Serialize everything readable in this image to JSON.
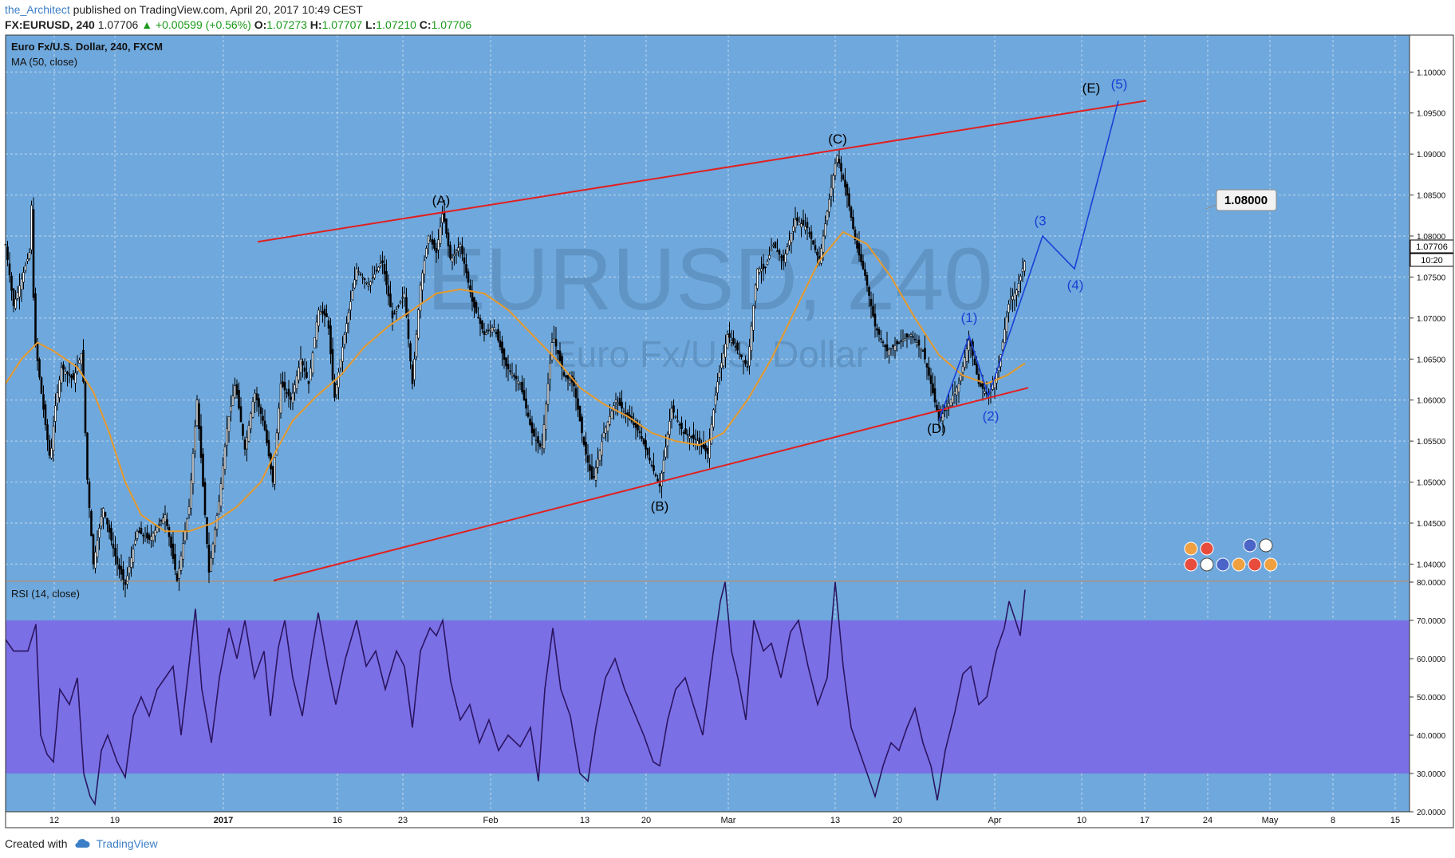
{
  "header": {
    "author": "the_Architect",
    "published": "published on TradingView.com, April 20, 2017 10:49 CEST",
    "symbol": "FX:EURUSD, 240",
    "last": "1.07706",
    "change": "▲ +0.00599 (+0.56%)",
    "o_label": "O:",
    "o": "1.07273",
    "h_label": "H:",
    "h": "1.07707",
    "l_label": "L:",
    "l": "1.07210",
    "c_label": "C:",
    "c": "1.07706"
  },
  "price_pane": {
    "title": "Euro Fx/U.S. Dollar, 240, FXCM",
    "ma_label": "MA (50, close)",
    "watermark_big": "EURUSD, 240",
    "watermark_small": "Euro Fx/U.S. Dollar",
    "last_price_tag": "1.07706",
    "countdown_tag": "10:20",
    "target_box": "1.08000"
  },
  "rsi_pane": {
    "title": "RSI (14, close)"
  },
  "footer": {
    "created_with": "Created with",
    "brand": "TradingView"
  },
  "colors": {
    "background": "#6fa8dc",
    "rsi_band": "#7b6fe6",
    "trendline": "#e02020",
    "ma": "#e69a2e",
    "wave": "#1a3fd6",
    "rsi_line": "#2a1560",
    "candles": "#000000"
  },
  "chart_data": [
    {
      "type": "candlestick",
      "title": "Euro Fx/U.S. Dollar, 240, FXCM",
      "ylim": [
        1.038,
        1.1045
      ],
      "y_ticks": [
        "1.10000",
        "1.09500",
        "1.09000",
        "1.08500",
        "1.08000",
        "1.07500",
        "1.07000",
        "1.06500",
        "1.06000",
        "1.05500",
        "1.05000",
        "1.04500",
        "1.04000"
      ],
      "x_ticks": [
        "12",
        "19",
        "2017",
        "16",
        "23",
        "Feb",
        "13",
        "20",
        "Mar",
        "13",
        "20",
        "Apr",
        "10",
        "17",
        "24",
        "May",
        "8",
        "15"
      ],
      "price_path": [
        [
          0,
          1.079
        ],
        [
          10,
          1.0715
        ],
        [
          30,
          1.078
        ],
        [
          32,
          1.086
        ],
        [
          36,
          1.068
        ],
        [
          46,
          1.06
        ],
        [
          56,
          1.0525
        ],
        [
          62,
          1.059
        ],
        [
          70,
          1.064
        ],
        [
          85,
          1.0625
        ],
        [
          96,
          1.066
        ],
        [
          102,
          1.051
        ],
        [
          110,
          1.04
        ],
        [
          122,
          1.047
        ],
        [
          140,
          1.04
        ],
        [
          150,
          1.0375
        ],
        [
          165,
          1.044
        ],
        [
          180,
          1.043
        ],
        [
          200,
          1.046
        ],
        [
          215,
          1.038
        ],
        [
          230,
          1.047
        ],
        [
          240,
          1.06
        ],
        [
          255,
          1.039
        ],
        [
          268,
          1.048
        ],
        [
          278,
          1.057
        ],
        [
          288,
          1.062
        ],
        [
          300,
          1.054
        ],
        [
          312,
          1.061
        ],
        [
          324,
          1.057
        ],
        [
          335,
          1.05
        ],
        [
          345,
          1.062
        ],
        [
          358,
          1.06
        ],
        [
          370,
          1.065
        ],
        [
          380,
          1.062
        ],
        [
          392,
          1.071
        ],
        [
          404,
          1.07
        ],
        [
          412,
          1.06
        ],
        [
          425,
          1.068
        ],
        [
          440,
          1.076
        ],
        [
          455,
          1.074
        ],
        [
          472,
          1.077
        ],
        [
          485,
          1.07
        ],
        [
          500,
          1.073
        ],
        [
          510,
          1.062
        ],
        [
          520,
          1.074
        ],
        [
          530,
          1.08
        ],
        [
          540,
          1.078
        ],
        [
          548,
          1.083
        ],
        [
          558,
          1.077
        ],
        [
          570,
          1.079
        ],
        [
          585,
          1.072
        ],
        [
          600,
          1.068
        ],
        [
          612,
          1.069
        ],
        [
          628,
          1.064
        ],
        [
          645,
          1.062
        ],
        [
          660,
          1.056
        ],
        [
          672,
          1.054
        ],
        [
          686,
          1.068
        ],
        [
          700,
          1.063
        ],
        [
          712,
          1.062
        ],
        [
          726,
          1.054
        ],
        [
          736,
          1.05
        ],
        [
          750,
          1.056
        ],
        [
          765,
          1.06
        ],
        [
          780,
          1.058
        ],
        [
          795,
          1.056
        ],
        [
          810,
          1.052
        ],
        [
          820,
          1.0495
        ],
        [
          835,
          1.059
        ],
        [
          850,
          1.056
        ],
        [
          868,
          1.055
        ],
        [
          880,
          1.0535
        ],
        [
          892,
          1.062
        ],
        [
          905,
          1.068
        ],
        [
          918,
          1.066
        ],
        [
          930,
          1.064
        ],
        [
          942,
          1.076
        ],
        [
          952,
          1.076
        ],
        [
          962,
          1.079
        ],
        [
          975,
          1.077
        ],
        [
          990,
          1.082
        ],
        [
          1005,
          1.081
        ],
        [
          1020,
          1.077
        ],
        [
          1030,
          1.083
        ],
        [
          1042,
          1.09
        ],
        [
          1055,
          1.085
        ],
        [
          1066,
          1.079
        ],
        [
          1078,
          1.075
        ],
        [
          1090,
          1.069
        ],
        [
          1105,
          1.066
        ],
        [
          1120,
          1.067
        ],
        [
          1135,
          1.068
        ],
        [
          1150,
          1.066
        ],
        [
          1160,
          1.062
        ],
        [
          1170,
          1.0575
        ],
        [
          1182,
          1.0595
        ],
        [
          1195,
          1.062
        ],
        [
          1208,
          1.0675
        ],
        [
          1220,
          1.062
        ],
        [
          1232,
          1.0605
        ],
        [
          1245,
          1.064
        ],
        [
          1258,
          1.072
        ],
        [
          1268,
          1.0735
        ],
        [
          1278,
          1.0771
        ]
      ],
      "ma_path": [
        [
          0,
          1.062
        ],
        [
          20,
          1.065
        ],
        [
          40,
          1.067
        ],
        [
          60,
          1.066
        ],
        [
          90,
          1.064
        ],
        [
          110,
          1.061
        ],
        [
          130,
          1.056
        ],
        [
          150,
          1.05
        ],
        [
          170,
          1.046
        ],
        [
          200,
          1.044
        ],
        [
          230,
          1.044
        ],
        [
          260,
          1.045
        ],
        [
          290,
          1.047
        ],
        [
          320,
          1.05
        ],
        [
          340,
          1.054
        ],
        [
          360,
          1.0575
        ],
        [
          390,
          1.0605
        ],
        [
          420,
          1.063
        ],
        [
          450,
          1.0665
        ],
        [
          480,
          1.069
        ],
        [
          510,
          1.071
        ],
        [
          540,
          1.073
        ],
        [
          570,
          1.0735
        ],
        [
          600,
          1.073
        ],
        [
          630,
          1.071
        ],
        [
          660,
          1.068
        ],
        [
          690,
          1.065
        ],
        [
          720,
          1.0615
        ],
        [
          750,
          1.0595
        ],
        [
          780,
          1.058
        ],
        [
          810,
          1.056
        ],
        [
          840,
          1.055
        ],
        [
          870,
          1.0545
        ],
        [
          900,
          1.056
        ],
        [
          930,
          1.06
        ],
        [
          960,
          1.065
        ],
        [
          990,
          1.071
        ],
        [
          1020,
          1.077
        ],
        [
          1050,
          1.0805
        ],
        [
          1080,
          1.079
        ],
        [
          1110,
          1.075
        ],
        [
          1140,
          1.07
        ],
        [
          1170,
          1.0655
        ],
        [
          1200,
          1.063
        ],
        [
          1230,
          1.062
        ],
        [
          1255,
          1.063
        ],
        [
          1278,
          1.0645
        ]
      ],
      "trendlines": [
        {
          "from": [
            316,
            1.0793
          ],
          "to": [
            1430,
            1.0965
          ]
        },
        {
          "from": [
            336,
            1.038
          ],
          "to": [
            1282,
            1.0615
          ]
        }
      ],
      "wave_path": [
        [
          1170,
          1.0575
        ],
        [
          1208,
          1.0678
        ],
        [
          1232,
          1.0605
        ],
        [
          1300,
          1.08
        ],
        [
          1340,
          1.076
        ],
        [
          1395,
          1.0965
        ]
      ],
      "labels": [
        {
          "text": "(A)",
          "x": 546,
          "y": 1.0838,
          "color": "#000000"
        },
        {
          "text": "(B)",
          "x": 820,
          "y": 1.0465,
          "color": "#000000"
        },
        {
          "text": "(C)",
          "x": 1043,
          "y": 1.0913,
          "color": "#000000"
        },
        {
          "text": "(D)",
          "x": 1167,
          "y": 1.056,
          "color": "#000000"
        },
        {
          "text": "(E)",
          "x": 1361,
          "y": 1.0975,
          "color": "#000000"
        },
        {
          "text": "(1)",
          "x": 1208,
          "y": 1.0695,
          "color": "#1a3fd6"
        },
        {
          "text": "(2)",
          "x": 1235,
          "y": 1.0575,
          "color": "#1a3fd6"
        },
        {
          "text": "(3",
          "x": 1297,
          "y": 1.0813,
          "color": "#1a3fd6"
        },
        {
          "text": "(4)",
          "x": 1341,
          "y": 1.0735,
          "color": "#1a3fd6"
        },
        {
          "text": "(5)",
          "x": 1396,
          "y": 1.098,
          "color": "#1a3fd6"
        }
      ]
    },
    {
      "type": "line",
      "title": "RSI (14, close)",
      "ylim": [
        20,
        80
      ],
      "band": [
        30,
        70
      ],
      "y_ticks": [
        "80.0000",
        "70.0000",
        "60.0000",
        "50.0000",
        "40.0000",
        "30.0000",
        "20.0000"
      ],
      "values": [
        [
          0,
          65
        ],
        [
          10,
          62
        ],
        [
          28,
          62
        ],
        [
          38,
          69
        ],
        [
          44,
          40
        ],
        [
          52,
          35
        ],
        [
          60,
          33
        ],
        [
          68,
          52
        ],
        [
          80,
          48
        ],
        [
          90,
          55
        ],
        [
          98,
          30
        ],
        [
          106,
          24
        ],
        [
          112,
          22
        ],
        [
          120,
          36
        ],
        [
          128,
          40
        ],
        [
          140,
          33
        ],
        [
          150,
          29
        ],
        [
          160,
          45
        ],
        [
          170,
          50
        ],
        [
          180,
          45
        ],
        [
          190,
          52
        ],
        [
          200,
          55
        ],
        [
          210,
          58
        ],
        [
          220,
          40
        ],
        [
          232,
          62
        ],
        [
          238,
          73
        ],
        [
          246,
          52
        ],
        [
          258,
          38
        ],
        [
          268,
          55
        ],
        [
          280,
          68
        ],
        [
          290,
          60
        ],
        [
          300,
          70
        ],
        [
          312,
          55
        ],
        [
          324,
          62
        ],
        [
          332,
          45
        ],
        [
          342,
          63
        ],
        [
          350,
          70
        ],
        [
          360,
          55
        ],
        [
          372,
          45
        ],
        [
          384,
          62
        ],
        [
          392,
          72
        ],
        [
          404,
          58
        ],
        [
          414,
          48
        ],
        [
          426,
          60
        ],
        [
          440,
          70
        ],
        [
          452,
          58
        ],
        [
          464,
          62
        ],
        [
          476,
          52
        ],
        [
          490,
          62
        ],
        [
          500,
          58
        ],
        [
          510,
          42
        ],
        [
          520,
          62
        ],
        [
          532,
          68
        ],
        [
          540,
          66
        ],
        [
          548,
          70
        ],
        [
          558,
          54
        ],
        [
          570,
          44
        ],
        [
          582,
          48
        ],
        [
          594,
          38
        ],
        [
          606,
          44
        ],
        [
          618,
          36
        ],
        [
          630,
          40
        ],
        [
          645,
          37
        ],
        [
          658,
          42
        ],
        [
          668,
          28
        ],
        [
          676,
          52
        ],
        [
          686,
          68
        ],
        [
          696,
          52
        ],
        [
          708,
          45
        ],
        [
          720,
          30
        ],
        [
          730,
          28
        ],
        [
          740,
          42
        ],
        [
          752,
          55
        ],
        [
          764,
          60
        ],
        [
          776,
          52
        ],
        [
          788,
          46
        ],
        [
          800,
          40
        ],
        [
          812,
          33
        ],
        [
          820,
          32
        ],
        [
          830,
          44
        ],
        [
          840,
          52
        ],
        [
          852,
          55
        ],
        [
          862,
          48
        ],
        [
          874,
          40
        ],
        [
          886,
          60
        ],
        [
          896,
          75
        ],
        [
          902,
          80
        ],
        [
          910,
          62
        ],
        [
          918,
          55
        ],
        [
          928,
          44
        ],
        [
          938,
          70
        ],
        [
          950,
          62
        ],
        [
          960,
          64
        ],
        [
          972,
          55
        ],
        [
          984,
          67
        ],
        [
          994,
          70
        ],
        [
          1006,
          58
        ],
        [
          1018,
          48
        ],
        [
          1030,
          55
        ],
        [
          1040,
          80
        ],
        [
          1050,
          58
        ],
        [
          1060,
          42
        ],
        [
          1070,
          36
        ],
        [
          1080,
          30
        ],
        [
          1090,
          24
        ],
        [
          1100,
          32
        ],
        [
          1110,
          38
        ],
        [
          1120,
          36
        ],
        [
          1130,
          42
        ],
        [
          1140,
          47
        ],
        [
          1150,
          38
        ],
        [
          1160,
          32
        ],
        [
          1168,
          23
        ],
        [
          1178,
          36
        ],
        [
          1190,
          46
        ],
        [
          1200,
          56
        ],
        [
          1210,
          58
        ],
        [
          1220,
          48
        ],
        [
          1230,
          50
        ],
        [
          1242,
          62
        ],
        [
          1252,
          68
        ],
        [
          1258,
          75
        ],
        [
          1266,
          70
        ],
        [
          1272,
          66
        ],
        [
          1278,
          78
        ]
      ]
    }
  ]
}
